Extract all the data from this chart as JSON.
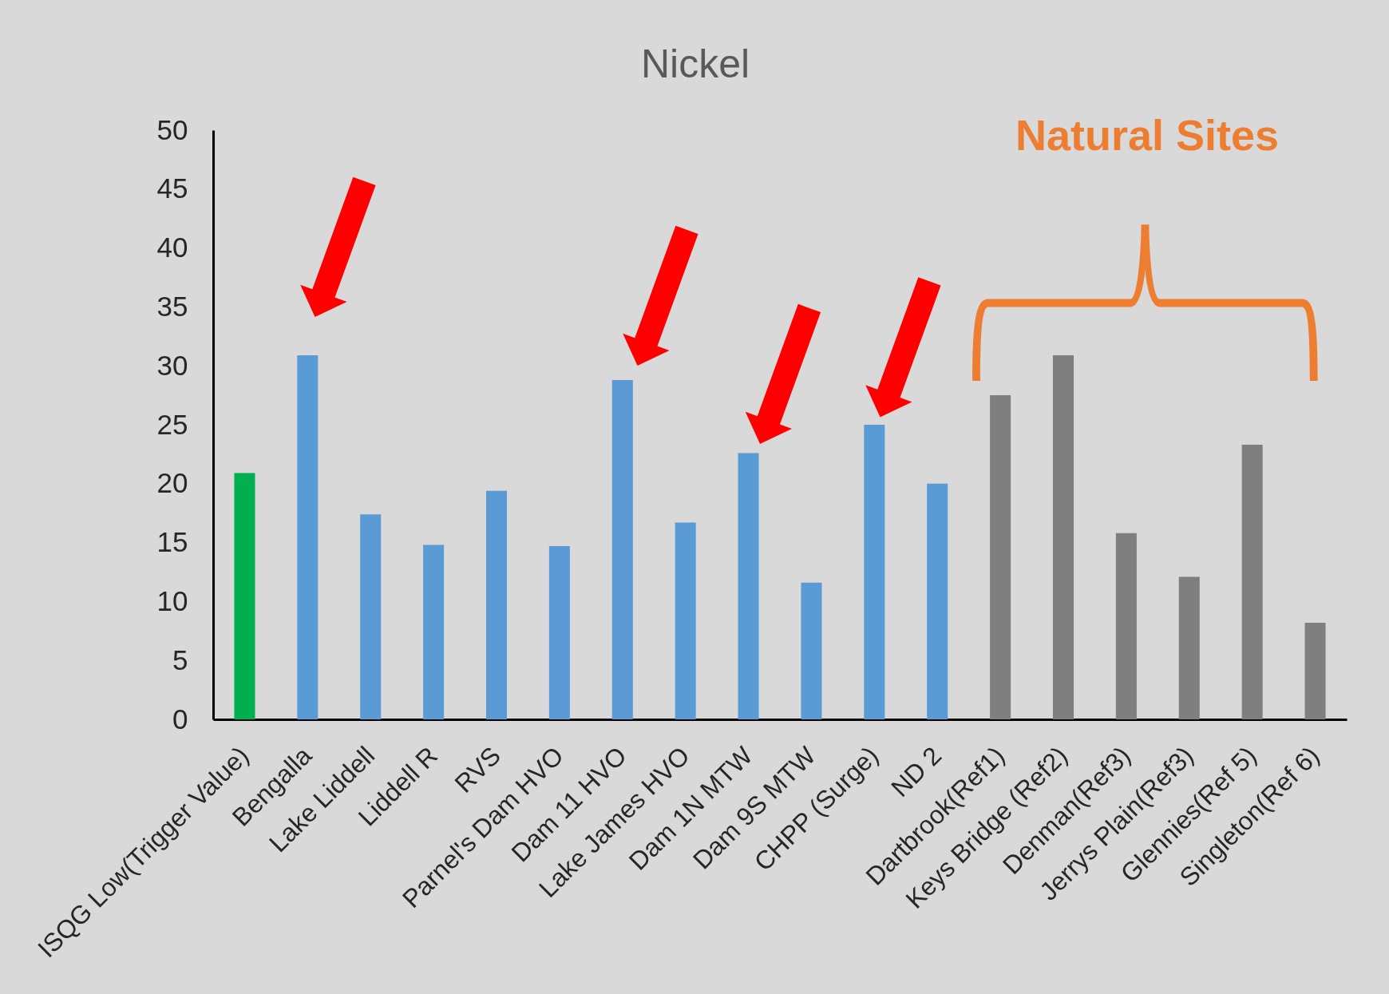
{
  "chart_data": {
    "type": "bar",
    "title": "Nickel",
    "categories": [
      "ISQG Low(Trigger Value)",
      "Bengalla",
      "Lake Liddell",
      "Liddell R",
      "RVS",
      "Parnel's Dam HVO",
      "Dam 11 HVO",
      "Lake James HVO",
      "Dam 1N MTW",
      "Dam 9S MTW",
      "CHPP (Surge)",
      "ND 2",
      "Dartbrook(Ref1)",
      "Keys Bridge (Ref2)",
      "Denman(Ref3)",
      "Jerrys Plain(Ref3)",
      "Glennies(Ref 5)",
      "Singleton(Ref 6)"
    ],
    "values": [
      20.9,
      30.9,
      17.4,
      14.8,
      19.4,
      14.7,
      28.8,
      16.7,
      22.6,
      11.6,
      25.0,
      20.0,
      27.5,
      30.9,
      15.8,
      12.1,
      23.3,
      8.2
    ],
    "colors": [
      "#00b050",
      "#5b9bd5",
      "#5b9bd5",
      "#5b9bd5",
      "#5b9bd5",
      "#5b9bd5",
      "#5b9bd5",
      "#5b9bd5",
      "#5b9bd5",
      "#5b9bd5",
      "#5b9bd5",
      "#5b9bd5",
      "#7f7f7f",
      "#7f7f7f",
      "#7f7f7f",
      "#7f7f7f",
      "#7f7f7f",
      "#7f7f7f"
    ],
    "ylim": [
      0,
      50
    ],
    "yticks": [
      0,
      5,
      10,
      15,
      20,
      25,
      30,
      35,
      40,
      45,
      50
    ],
    "grid": false,
    "annotations": [
      "Natural Sites"
    ]
  }
}
